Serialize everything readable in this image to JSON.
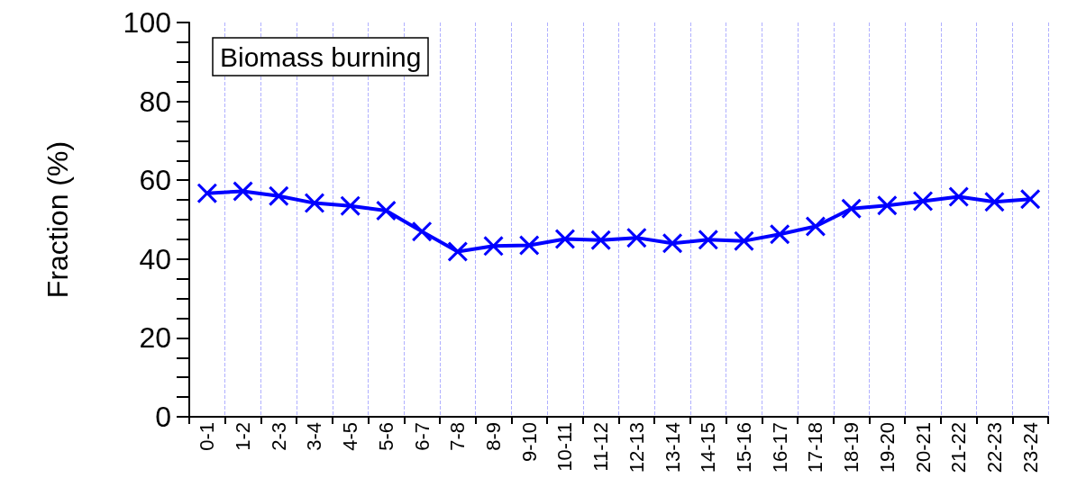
{
  "chart_data": {
    "type": "line",
    "ylabel": "Fraction (%)",
    "categories": [
      "0-1",
      "1-2",
      "2-3",
      "3-4",
      "4-5",
      "5-6",
      "6-7",
      "7-8",
      "8-9",
      "9-10",
      "10-11",
      "11-12",
      "12-13",
      "13-14",
      "14-15",
      "15-16",
      "16-17",
      "17-18",
      "18-19",
      "19-20",
      "20-21",
      "21-22",
      "22-23",
      "23-24"
    ],
    "series": [
      {
        "color": "#0000ff",
        "values": [
          56.7,
          57.2,
          56.0,
          54.2,
          53.5,
          52.3,
          47.0,
          41.9,
          43.3,
          43.5,
          45.1,
          44.8,
          45.4,
          44.0,
          44.9,
          44.6,
          46.3,
          48.3,
          52.8,
          53.6,
          54.7,
          55.8,
          54.5,
          55.2
        ]
      }
    ],
    "ylim": [
      0,
      100
    ],
    "yticks": [
      0,
      20,
      40,
      60,
      80,
      100
    ],
    "annotations": [
      "Biomass burning"
    ],
    "grid": "x",
    "marker": "cross",
    "line_style": "solid"
  }
}
